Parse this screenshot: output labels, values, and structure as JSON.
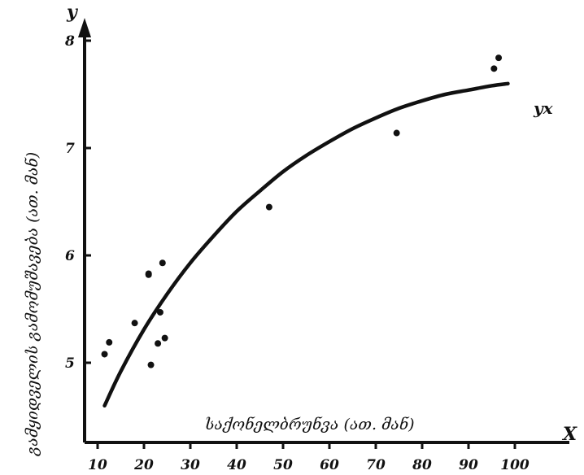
{
  "chart_data": {
    "type": "scatter",
    "xlabel": "საქონელბრუნვა (ათ. მან)",
    "ylabel": "გამყიდველის გამომუშავება (ათ. მან)",
    "x_axis_letter": "X",
    "y_axis_letter": "y",
    "curve_label": "yx",
    "xlim": [
      8,
      100
    ],
    "ylim": [
      4.25,
      8.1
    ],
    "x_ticks": [
      10,
      20,
      30,
      40,
      50,
      60,
      70,
      80,
      90,
      100
    ],
    "y_ticks": [
      5,
      6,
      7,
      8
    ],
    "grid": false,
    "series": [
      {
        "kind": "points",
        "points": [
          {
            "x": 11.5,
            "y": 5.08
          },
          {
            "x": 12.5,
            "y": 5.19
          },
          {
            "x": 18,
            "y": 5.37
          },
          {
            "x": 21,
            "y": 5.82
          },
          {
            "x": 21,
            "y": 5.83
          },
          {
            "x": 21.5,
            "y": 4.98
          },
          {
            "x": 23,
            "y": 5.18
          },
          {
            "x": 23.5,
            "y": 5.47
          },
          {
            "x": 24,
            "y": 5.93
          },
          {
            "x": 24.5,
            "y": 5.23
          },
          {
            "x": 47,
            "y": 6.45
          },
          {
            "x": 74.5,
            "y": 7.14
          },
          {
            "x": 95.5,
            "y": 7.74
          },
          {
            "x": 96.5,
            "y": 7.84
          }
        ]
      },
      {
        "kind": "curve",
        "name": "yx",
        "points": [
          {
            "x": 11.5,
            "y": 4.6
          },
          {
            "x": 15,
            "y": 4.92
          },
          {
            "x": 20,
            "y": 5.31
          },
          {
            "x": 25,
            "y": 5.64
          },
          {
            "x": 30,
            "y": 5.93
          },
          {
            "x": 35,
            "y": 6.18
          },
          {
            "x": 40,
            "y": 6.41
          },
          {
            "x": 45,
            "y": 6.6
          },
          {
            "x": 50,
            "y": 6.78
          },
          {
            "x": 55,
            "y": 6.93
          },
          {
            "x": 60,
            "y": 7.06
          },
          {
            "x": 65,
            "y": 7.18
          },
          {
            "x": 70,
            "y": 7.28
          },
          {
            "x": 75,
            "y": 7.37
          },
          {
            "x": 80,
            "y": 7.44
          },
          {
            "x": 85,
            "y": 7.5
          },
          {
            "x": 90,
            "y": 7.54
          },
          {
            "x": 95,
            "y": 7.58
          },
          {
            "x": 98.5,
            "y": 7.6
          }
        ]
      }
    ]
  }
}
